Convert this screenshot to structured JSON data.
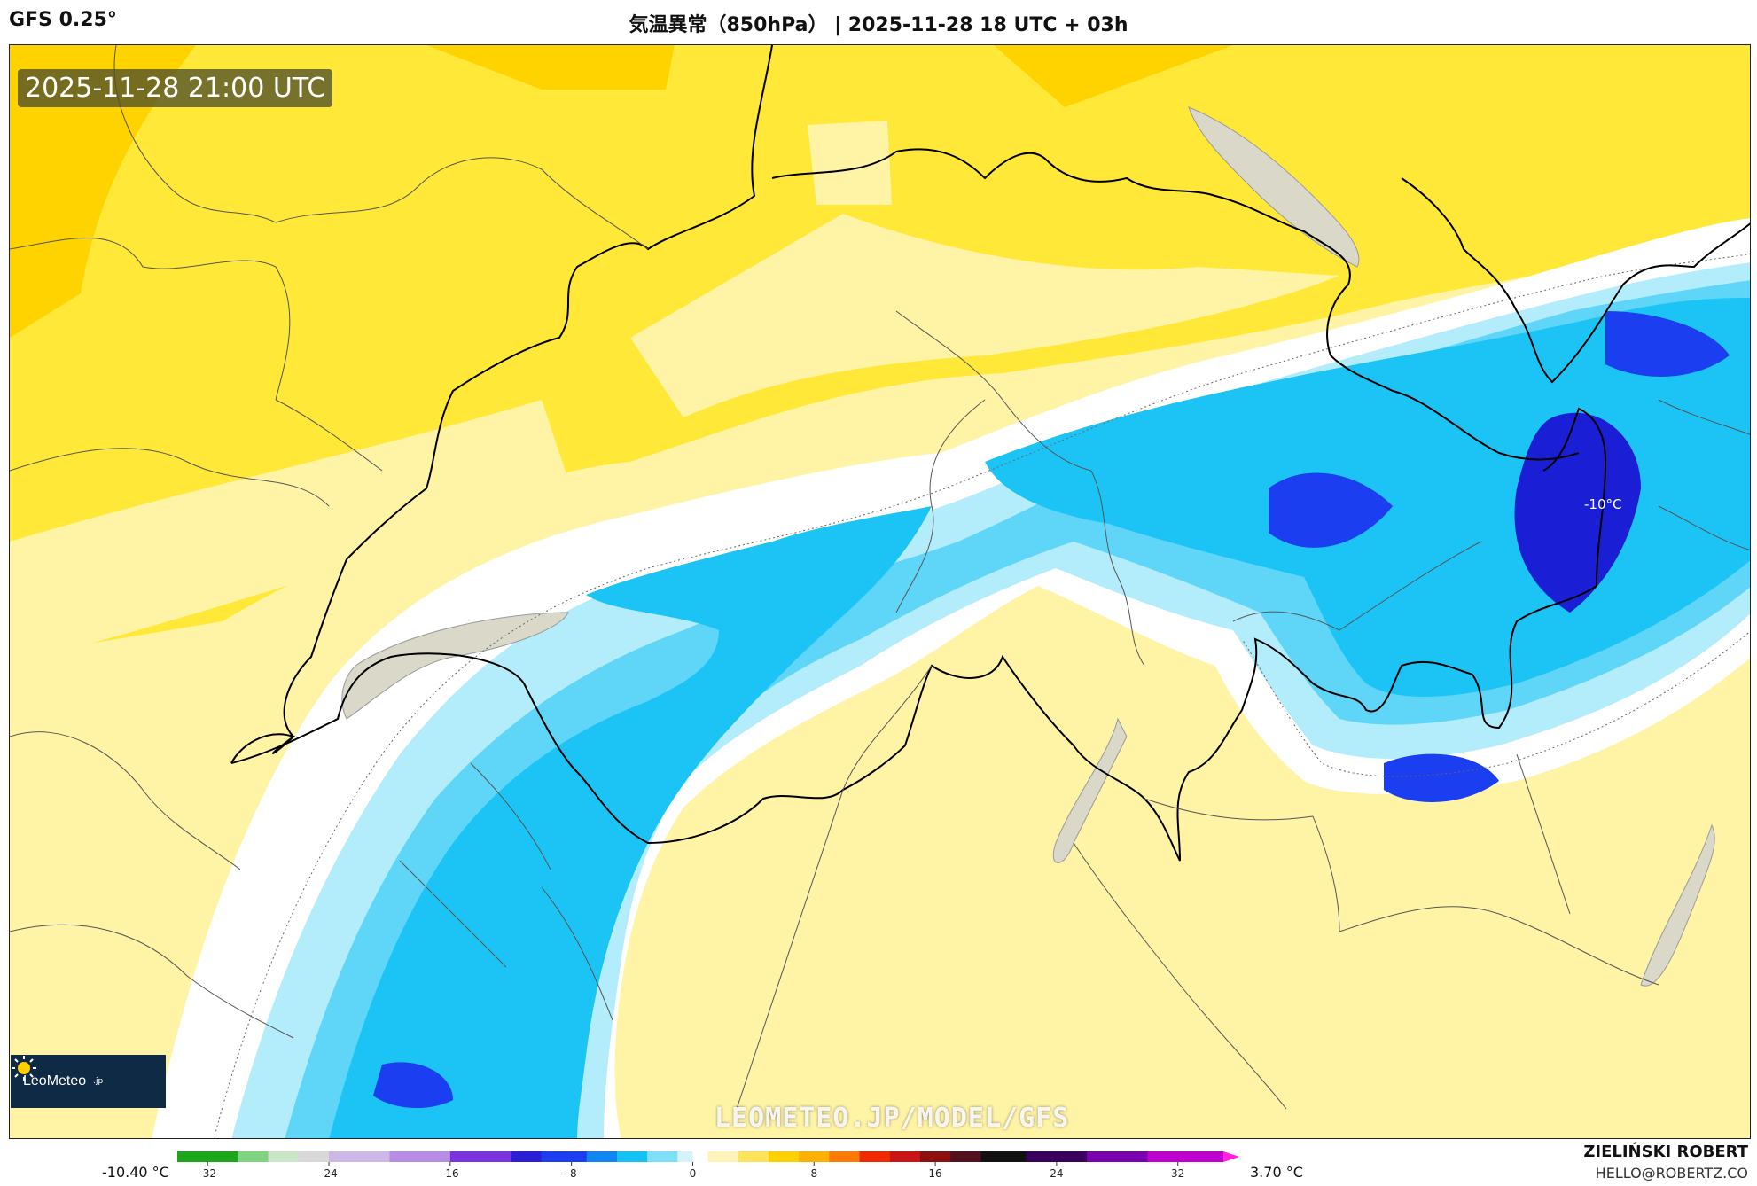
{
  "header": {
    "model": "GFS 0.25°",
    "title": "気温異常（850hPa） | 2025-11-28 18 UTC + 03h"
  },
  "map": {
    "valid_time": "2025-11-28 21:00 UTC",
    "contour_label": "-10°C",
    "watermark": "LEOMETEO.JP/MODEL/GFS",
    "logo": {
      "brand": "LeoMeteo",
      "suffix": ".jp",
      "icon": "sun-icon"
    }
  },
  "colorbar": {
    "min_label": "-10.40 °C",
    "max_label": "3.70 °C",
    "ticks": [
      "-32",
      "-24",
      "-16",
      "-8",
      "0",
      "8",
      "16",
      "24",
      "32"
    ],
    "tick_values": [
      -32,
      -24,
      -16,
      -8,
      0,
      8,
      16,
      24,
      32
    ],
    "range": [
      -34,
      35
    ],
    "stops": [
      {
        "v": -34,
        "c": "#1aa81a"
      },
      {
        "v": -30,
        "c": "#7fd47f"
      },
      {
        "v": -28,
        "c": "#c9e6c9"
      },
      {
        "v": -26,
        "c": "#d8d8d8"
      },
      {
        "v": -24,
        "c": "#cdb7e6"
      },
      {
        "v": -20,
        "c": "#b68ce6"
      },
      {
        "v": -16,
        "c": "#7a33e0"
      },
      {
        "v": -12,
        "c": "#2a1fd6"
      },
      {
        "v": -10,
        "c": "#1a3ef0"
      },
      {
        "v": -7,
        "c": "#0f86f2"
      },
      {
        "v": -5,
        "c": "#14c3f5"
      },
      {
        "v": -3,
        "c": "#7ee0f8"
      },
      {
        "v": -1,
        "c": "#d4f3fb"
      },
      {
        "v": 0,
        "c": "#ffffff"
      },
      {
        "v": 1,
        "c": "#fff4b8"
      },
      {
        "v": 3,
        "c": "#ffe45a"
      },
      {
        "v": 5,
        "c": "#ffd000"
      },
      {
        "v": 7,
        "c": "#ffb000"
      },
      {
        "v": 9,
        "c": "#ff7a00"
      },
      {
        "v": 11,
        "c": "#f02a00"
      },
      {
        "v": 13,
        "c": "#c81414"
      },
      {
        "v": 15,
        "c": "#8c1010"
      },
      {
        "v": 17,
        "c": "#551020"
      },
      {
        "v": 19,
        "c": "#111111"
      },
      {
        "v": 22,
        "c": "#3a0060"
      },
      {
        "v": 26,
        "c": "#7a00b0"
      },
      {
        "v": 30,
        "c": "#c000d0"
      },
      {
        "v": 35,
        "c": "#ff20e0"
      }
    ]
  },
  "credits": {
    "name": "ZIELIŃSKI ROBERT",
    "email": "HELLO@ROBERTZ.CO"
  }
}
